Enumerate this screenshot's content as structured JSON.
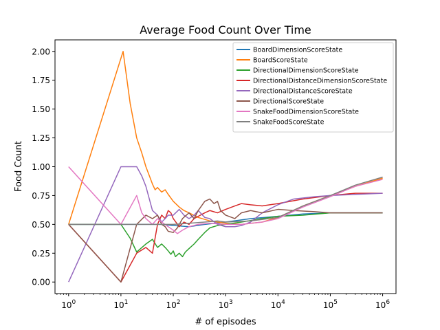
{
  "chart_data": {
    "type": "line",
    "title": "Average Food Count Over Time",
    "xlabel": "# of episodes",
    "ylabel": "Food Count",
    "xscale": "log",
    "xlim": [
      0.55,
      1800000
    ],
    "ylim": [
      -0.1,
      2.1
    ],
    "xticks": [
      {
        "value": 1,
        "base": "10",
        "exp": "0"
      },
      {
        "value": 10,
        "base": "10",
        "exp": "1"
      },
      {
        "value": 100,
        "base": "10",
        "exp": "2"
      },
      {
        "value": 1000,
        "base": "10",
        "exp": "3"
      },
      {
        "value": 10000,
        "base": "10",
        "exp": "4"
      },
      {
        "value": 100000,
        "base": "10",
        "exp": "5"
      },
      {
        "value": 1000000,
        "base": "10",
        "exp": "6"
      }
    ],
    "yticks": [
      {
        "value": 0.0,
        "label": "0.00"
      },
      {
        "value": 0.25,
        "label": "0.25"
      },
      {
        "value": 0.5,
        "label": "0.50"
      },
      {
        "value": 0.75,
        "label": "0.75"
      },
      {
        "value": 1.0,
        "label": "1.00"
      },
      {
        "value": 1.25,
        "label": "1.25"
      },
      {
        "value": 1.5,
        "label": "1.50"
      },
      {
        "value": 1.75,
        "label": "1.75"
      },
      {
        "value": 2.0,
        "label": "2.00"
      }
    ],
    "grid": false,
    "legend_position": "top-right",
    "series": [
      {
        "name": "BoardDimensionScoreState",
        "color": "#1f77b4",
        "points": [
          [
            1,
            0.5
          ],
          [
            10,
            0.5
          ],
          [
            30,
            0.5
          ],
          [
            60,
            0.5
          ],
          [
            100,
            0.49
          ],
          [
            200,
            0.48
          ],
          [
            400,
            0.5
          ],
          [
            1000,
            0.52
          ],
          [
            3000,
            0.55
          ],
          [
            10000,
            0.57
          ],
          [
            30000,
            0.59
          ],
          [
            100000,
            0.6
          ],
          [
            1000000,
            0.6
          ]
        ]
      },
      {
        "name": "BoardScoreState",
        "color": "#ff7f0e",
        "points": [
          [
            1,
            0.5
          ],
          [
            11,
            2.0
          ],
          [
            15,
            1.55
          ],
          [
            20,
            1.25
          ],
          [
            25,
            1.12
          ],
          [
            30,
            1.0
          ],
          [
            35,
            0.92
          ],
          [
            40,
            0.85
          ],
          [
            45,
            0.8
          ],
          [
            50,
            0.82
          ],
          [
            60,
            0.78
          ],
          [
            70,
            0.8
          ],
          [
            80,
            0.76
          ],
          [
            100,
            0.7
          ],
          [
            130,
            0.65
          ],
          [
            160,
            0.62
          ],
          [
            200,
            0.6
          ],
          [
            300,
            0.56
          ],
          [
            500,
            0.53
          ],
          [
            700,
            0.52
          ],
          [
            1000,
            0.51
          ],
          [
            2000,
            0.5
          ],
          [
            5000,
            0.52
          ],
          [
            10000,
            0.56
          ],
          [
            30000,
            0.66
          ],
          [
            100000,
            0.75
          ],
          [
            300000,
            0.83
          ],
          [
            1000000,
            0.9
          ]
        ]
      },
      {
        "name": "DirectionalDimensionScoreState",
        "color": "#2ca02c",
        "points": [
          [
            1,
            0.5
          ],
          [
            10,
            0.5
          ],
          [
            15,
            0.38
          ],
          [
            20,
            0.26
          ],
          [
            30,
            0.33
          ],
          [
            40,
            0.37
          ],
          [
            50,
            0.3
          ],
          [
            60,
            0.33
          ],
          [
            70,
            0.3
          ],
          [
            80,
            0.27
          ],
          [
            90,
            0.24
          ],
          [
            100,
            0.27
          ],
          [
            110,
            0.22
          ],
          [
            130,
            0.25
          ],
          [
            150,
            0.22
          ],
          [
            170,
            0.26
          ],
          [
            200,
            0.29
          ],
          [
            250,
            0.33
          ],
          [
            300,
            0.37
          ],
          [
            400,
            0.43
          ],
          [
            500,
            0.47
          ],
          [
            700,
            0.49
          ],
          [
            1000,
            0.5
          ],
          [
            2000,
            0.52
          ],
          [
            5000,
            0.55
          ],
          [
            10000,
            0.57
          ],
          [
            30000,
            0.58
          ],
          [
            100000,
            0.6
          ],
          [
            1000000,
            0.6
          ]
        ]
      },
      {
        "name": "DirectionalDistanceDimensionScoreState",
        "color": "#d62728",
        "points": [
          [
            1,
            0.5
          ],
          [
            10,
            0.0
          ],
          [
            20,
            0.25
          ],
          [
            30,
            0.3
          ],
          [
            40,
            0.25
          ],
          [
            50,
            0.5
          ],
          [
            60,
            0.58
          ],
          [
            70,
            0.55
          ],
          [
            80,
            0.62
          ],
          [
            90,
            0.6
          ],
          [
            100,
            0.55
          ],
          [
            130,
            0.48
          ],
          [
            160,
            0.52
          ],
          [
            200,
            0.5
          ],
          [
            250,
            0.55
          ],
          [
            300,
            0.57
          ],
          [
            400,
            0.6
          ],
          [
            500,
            0.62
          ],
          [
            700,
            0.6
          ],
          [
            1000,
            0.63
          ],
          [
            1500,
            0.66
          ],
          [
            2000,
            0.68
          ],
          [
            3000,
            0.67
          ],
          [
            5000,
            0.66
          ],
          [
            10000,
            0.68
          ],
          [
            30000,
            0.72
          ],
          [
            100000,
            0.75
          ],
          [
            300000,
            0.77
          ],
          [
            1000000,
            0.77
          ]
        ]
      },
      {
        "name": "DirectionalDistanceScoreState",
        "color": "#9467bd",
        "points": [
          [
            1,
            0.0
          ],
          [
            10,
            1.0
          ],
          [
            20,
            1.0
          ],
          [
            25,
            0.92
          ],
          [
            30,
            0.83
          ],
          [
            40,
            0.62
          ],
          [
            50,
            0.58
          ],
          [
            60,
            0.52
          ],
          [
            70,
            0.55
          ],
          [
            80,
            0.58
          ],
          [
            100,
            0.58
          ],
          [
            130,
            0.63
          ],
          [
            160,
            0.58
          ],
          [
            200,
            0.55
          ],
          [
            250,
            0.58
          ],
          [
            300,
            0.62
          ],
          [
            400,
            0.56
          ],
          [
            500,
            0.55
          ],
          [
            700,
            0.5
          ],
          [
            1000,
            0.48
          ],
          [
            1500,
            0.48
          ],
          [
            2000,
            0.49
          ],
          [
            3000,
            0.52
          ],
          [
            5000,
            0.6
          ],
          [
            10000,
            0.67
          ],
          [
            20000,
            0.72
          ],
          [
            50000,
            0.74
          ],
          [
            100000,
            0.75
          ],
          [
            300000,
            0.76
          ],
          [
            1000000,
            0.77
          ]
        ]
      },
      {
        "name": "DirectionalScoreState",
        "color": "#8c564b",
        "points": [
          [
            1,
            0.5
          ],
          [
            10,
            0.0
          ],
          [
            20,
            0.5
          ],
          [
            30,
            0.58
          ],
          [
            40,
            0.55
          ],
          [
            50,
            0.58
          ],
          [
            60,
            0.5
          ],
          [
            70,
            0.48
          ],
          [
            80,
            0.44
          ],
          [
            100,
            0.43
          ],
          [
            120,
            0.47
          ],
          [
            150,
            0.55
          ],
          [
            200,
            0.6
          ],
          [
            250,
            0.55
          ],
          [
            300,
            0.62
          ],
          [
            400,
            0.7
          ],
          [
            500,
            0.72
          ],
          [
            600,
            0.68
          ],
          [
            700,
            0.7
          ],
          [
            800,
            0.62
          ],
          [
            1000,
            0.58
          ],
          [
            1500,
            0.55
          ],
          [
            2000,
            0.6
          ],
          [
            3000,
            0.62
          ],
          [
            5000,
            0.6
          ],
          [
            10000,
            0.63
          ],
          [
            20000,
            0.62
          ],
          [
            50000,
            0.61
          ],
          [
            100000,
            0.6
          ],
          [
            1000000,
            0.6
          ]
        ]
      },
      {
        "name": "SnakeFoodDimensionScoreState",
        "color": "#e377c2",
        "points": [
          [
            1,
            1.0
          ],
          [
            10,
            0.5
          ],
          [
            20,
            0.75
          ],
          [
            25,
            0.6
          ],
          [
            30,
            0.55
          ],
          [
            40,
            0.5
          ],
          [
            50,
            0.55
          ],
          [
            60,
            0.52
          ],
          [
            80,
            0.48
          ],
          [
            100,
            0.45
          ],
          [
            120,
            0.42
          ],
          [
            150,
            0.45
          ],
          [
            200,
            0.48
          ],
          [
            300,
            0.5
          ],
          [
            500,
            0.51
          ],
          [
            1000,
            0.5
          ],
          [
            2000,
            0.5
          ],
          [
            5000,
            0.52
          ],
          [
            10000,
            0.55
          ],
          [
            30000,
            0.65
          ],
          [
            100000,
            0.74
          ],
          [
            300000,
            0.83
          ],
          [
            1000000,
            0.89
          ]
        ]
      },
      {
        "name": "SnakeFoodScoreState",
        "color": "#7f7f7f",
        "points": [
          [
            1,
            0.5
          ],
          [
            10,
            0.5
          ],
          [
            30,
            0.5
          ],
          [
            60,
            0.5
          ],
          [
            100,
            0.5
          ],
          [
            200,
            0.51
          ],
          [
            400,
            0.52
          ],
          [
            700,
            0.53
          ],
          [
            1000,
            0.52
          ],
          [
            3000,
            0.53
          ],
          [
            10000,
            0.56
          ],
          [
            30000,
            0.66
          ],
          [
            100000,
            0.75
          ],
          [
            300000,
            0.84
          ],
          [
            1000000,
            0.91
          ]
        ]
      }
    ]
  }
}
